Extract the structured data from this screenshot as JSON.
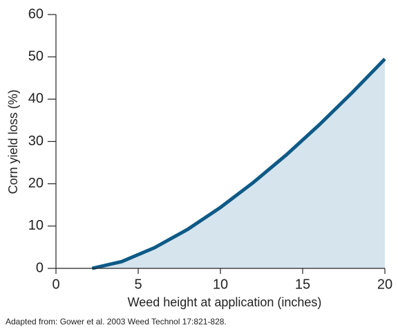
{
  "chart_data": {
    "type": "area",
    "x_label": "Weed height at application (inches)",
    "y_label": "Corn yield loss (%)",
    "source": "Adapted from: Gower et al. 2003 Weed Technol 17:821-828.",
    "x": [
      2.2,
      4,
      6,
      8,
      10,
      12,
      14,
      16,
      18,
      20
    ],
    "values": [
      0,
      1.6,
      4.9,
      9.2,
      14.4,
      20.3,
      26.8,
      33.9,
      41.5,
      49.5
    ],
    "color": "#0e5a87",
    "fill_color": "#d6e4ee",
    "xlim": [
      0,
      20
    ],
    "xticks": [
      0,
      5,
      10,
      15,
      20
    ],
    "ylim": [
      0,
      60
    ],
    "yticks": [
      0,
      10,
      20,
      30,
      40,
      50,
      60
    ],
    "grid": false
  }
}
